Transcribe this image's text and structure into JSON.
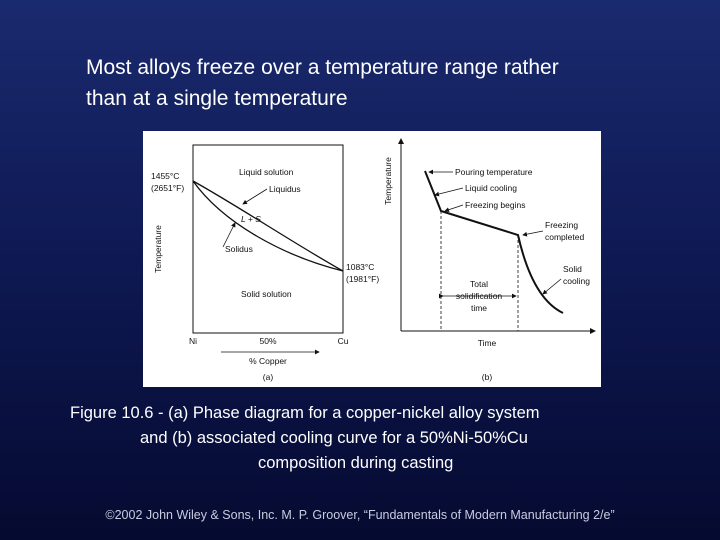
{
  "heading": {
    "line1": "Most alloys freeze over a temperature range rather",
    "line2": "than at a single temperature"
  },
  "diagram_a": {
    "y_axis_label": "Temperature",
    "ni_melt_c": "1455°C",
    "ni_melt_f": "(2651°F)",
    "cu_melt_c": "1083°C",
    "cu_melt_f": "(1981°F)",
    "liquid_region": "Liquid solution",
    "liquidus": "Liquidus",
    "two_phase": "L + S",
    "solidus": "Solidus",
    "solid_region": "Solid solution",
    "x_left": "Ni",
    "x_mid": "50%",
    "x_right": "Cu",
    "x_axis_label": "% Copper",
    "panel_label": "(a)"
  },
  "diagram_b": {
    "y_axis_label": "Temperature",
    "pouring": "Pouring temperature",
    "liquid_cooling": "Liquid cooling",
    "freezing_begins": "Freezing begins",
    "freezing_completed_1": "Freezing",
    "freezing_completed_2": "completed",
    "solid_cooling_1": "Solid",
    "solid_cooling_2": "cooling",
    "total_1": "Total",
    "total_2": "solidification",
    "total_3": "time",
    "x_axis_label": "Time",
    "panel_label": "(b)"
  },
  "caption": {
    "line1": "Figure 10.6 ‑ (a) Phase diagram for a copper‑nickel alloy system",
    "line2": "and (b) associated cooling curve for a 50%Ni‑50%Cu",
    "line3": "composition during casting"
  },
  "footer": "©2002 John Wiley & Sons, Inc.  M. P. Groover, “Fundamentals of Modern Manufacturing 2/e”",
  "colors": {
    "background_top": "#1a2a6e",
    "background_bottom": "#050a30",
    "text": "#ffffff",
    "panel": "#ffffff"
  }
}
